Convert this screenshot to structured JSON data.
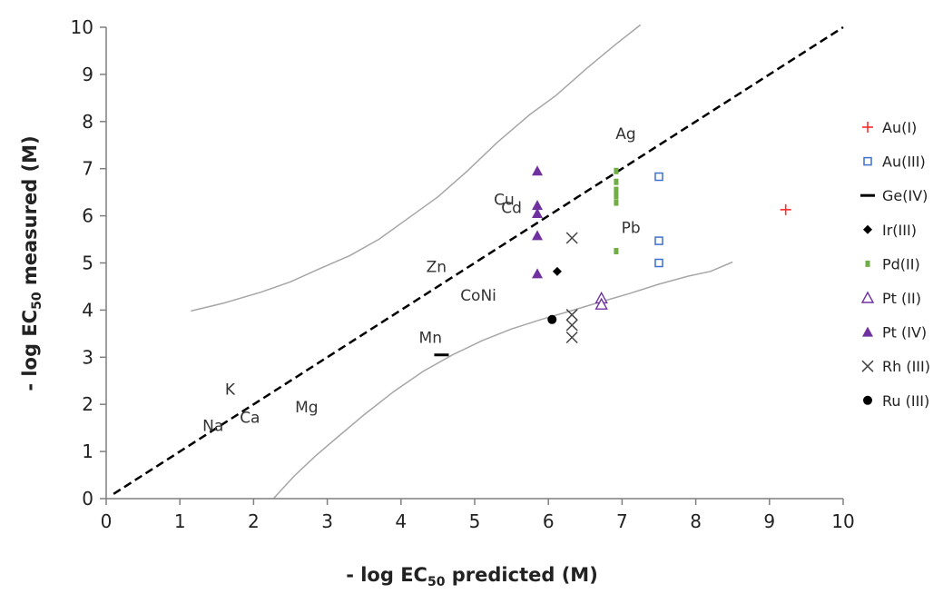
{
  "chart_data": {
    "type": "scatter",
    "title": "",
    "xlabel": {
      "prefix": "- log EC",
      "sub": "50",
      "suffix": " predicted (M)"
    },
    "ylabel": {
      "prefix": "- log EC",
      "sub": "50",
      "suffix": " measured (M)"
    },
    "xlim": [
      0,
      10
    ],
    "ylim": [
      0,
      10
    ],
    "xticks": [
      "0",
      "1",
      "2",
      "3",
      "4",
      "5",
      "6",
      "7",
      "8",
      "9",
      "10"
    ],
    "yticks": [
      "0",
      "1",
      "2",
      "3",
      "4",
      "5",
      "6",
      "7",
      "8",
      "9",
      "10"
    ],
    "grid": false,
    "legend_position": "right",
    "series": [
      {
        "name": "Au(I)",
        "marker": "plus",
        "color": "#ff2a2a",
        "points": [
          [
            9.22,
            6.13
          ]
        ]
      },
      {
        "name": "Au(III)",
        "marker": "square-open",
        "color": "#3f6fcf",
        "points": [
          [
            7.5,
            6.83
          ],
          [
            7.5,
            5.47
          ],
          [
            7.5,
            5.0
          ]
        ]
      },
      {
        "name": "Ge(IV)",
        "marker": "dash",
        "color": "#000000",
        "points": [
          [
            4.55,
            3.05
          ]
        ]
      },
      {
        "name": "Ir(III)",
        "marker": "diamond",
        "color": "#000000",
        "points": [
          [
            6.12,
            4.82
          ]
        ]
      },
      {
        "name": "Pd(II)",
        "marker": "bar",
        "color": "#70ad47",
        "points": [
          [
            6.92,
            6.95
          ],
          [
            6.92,
            6.72
          ],
          [
            6.92,
            6.55
          ],
          [
            6.92,
            6.42
          ],
          [
            6.92,
            6.28
          ],
          [
            6.92,
            5.25
          ]
        ]
      },
      {
        "name": "Pt (II)",
        "marker": "triangle-open",
        "color": "#7030a0",
        "points": [
          [
            6.72,
            4.25
          ],
          [
            6.72,
            4.12
          ]
        ]
      },
      {
        "name": "Pt (IV)",
        "marker": "triangle",
        "color": "#7030a0",
        "points": [
          [
            5.85,
            6.95
          ],
          [
            5.85,
            6.22
          ],
          [
            5.85,
            6.05
          ],
          [
            5.85,
            5.58
          ],
          [
            5.85,
            4.77
          ]
        ]
      },
      {
        "name": "Rh (III)",
        "marker": "x",
        "color": "#444444",
        "points": [
          [
            6.32,
            5.53
          ],
          [
            6.32,
            3.9
          ],
          [
            6.32,
            3.68
          ],
          [
            6.32,
            3.42
          ]
        ]
      },
      {
        "name": "Ru (III)",
        "marker": "circle",
        "color": "#000000",
        "points": [
          [
            6.05,
            3.8
          ]
        ]
      }
    ],
    "annotations": [
      {
        "text": "Ag",
        "x": 7.05,
        "y": 7.75
      },
      {
        "text": "Cu",
        "x": 5.4,
        "y": 6.35
      },
      {
        "text": "Cd",
        "x": 5.5,
        "y": 6.18
      },
      {
        "text": "Pb",
        "x": 7.12,
        "y": 5.75
      },
      {
        "text": "Zn",
        "x": 4.48,
        "y": 4.92
      },
      {
        "text": "CoNi",
        "x": 5.05,
        "y": 4.32
      },
      {
        "text": "Mn",
        "x": 4.4,
        "y": 3.42
      },
      {
        "text": "K",
        "x": 1.68,
        "y": 2.32
      },
      {
        "text": "Na",
        "x": 1.45,
        "y": 1.55
      },
      {
        "text": "Ca",
        "x": 1.95,
        "y": 1.72
      },
      {
        "text": "Mg",
        "x": 2.72,
        "y": 1.95
      }
    ],
    "identity_line": [
      [
        0.1,
        0.1
      ],
      [
        10,
        10
      ]
    ],
    "band_upper": [
      [
        1.15,
        3.98
      ],
      [
        1.6,
        4.15
      ],
      [
        2.1,
        4.38
      ],
      [
        2.5,
        4.6
      ],
      [
        2.9,
        4.88
      ],
      [
        3.3,
        5.15
      ],
      [
        3.7,
        5.5
      ],
      [
        4.1,
        5.95
      ],
      [
        4.5,
        6.4
      ],
      [
        4.9,
        6.95
      ],
      [
        5.3,
        7.55
      ],
      [
        5.75,
        8.15
      ],
      [
        6.1,
        8.55
      ],
      [
        6.5,
        9.1
      ],
      [
        6.9,
        9.62
      ],
      [
        7.25,
        10.05
      ]
    ],
    "band_lower": [
      [
        2.27,
        0.0
      ],
      [
        2.55,
        0.48
      ],
      [
        2.85,
        0.92
      ],
      [
        3.15,
        1.32
      ],
      [
        3.5,
        1.78
      ],
      [
        3.9,
        2.27
      ],
      [
        4.3,
        2.7
      ],
      [
        4.7,
        3.05
      ],
      [
        5.1,
        3.35
      ],
      [
        5.5,
        3.6
      ],
      [
        5.9,
        3.8
      ],
      [
        6.3,
        3.98
      ],
      [
        6.7,
        4.17
      ],
      [
        7.1,
        4.35
      ],
      [
        7.5,
        4.55
      ],
      [
        7.9,
        4.72
      ],
      [
        8.2,
        4.82
      ],
      [
        8.5,
        5.02
      ]
    ]
  }
}
